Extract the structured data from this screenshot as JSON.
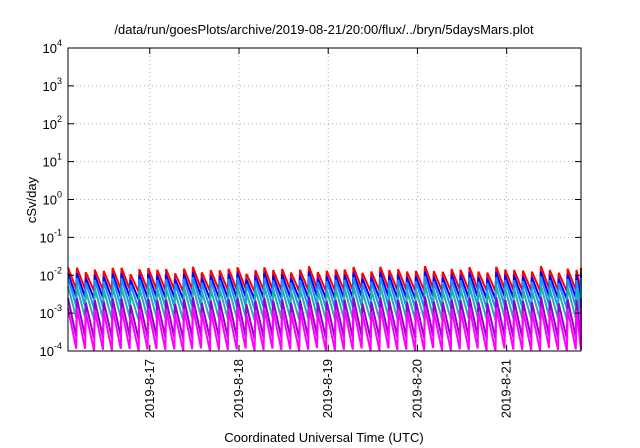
{
  "chart_data": {
    "type": "line",
    "title": "/data/run/goesPlots/archive/2019-08-21/20:00/flux/../bryn/5daysMars.plot",
    "xlabel": "Coordinated Universal Time (UTC)",
    "ylabel": "cSv/day",
    "yscale": "log",
    "ylim": [
      0.0001,
      10000
    ],
    "yticks": [
      {
        "value": 0.0001,
        "base": "10",
        "exp": "-4"
      },
      {
        "value": 0.001,
        "base": "10",
        "exp": "-3"
      },
      {
        "value": 0.01,
        "base": "10",
        "exp": "-2"
      },
      {
        "value": 0.1,
        "base": "10",
        "exp": "-1"
      },
      {
        "value": 1,
        "base": "10",
        "exp": "0"
      },
      {
        "value": 10,
        "base": "10",
        "exp": "1"
      },
      {
        "value": 100,
        "base": "10",
        "exp": "2"
      },
      {
        "value": 1000,
        "base": "10",
        "exp": "3"
      },
      {
        "value": 10000,
        "base": "10",
        "exp": "4"
      }
    ],
    "xlim": [
      "2019-08-16T02:00",
      "2019-08-21T20:00"
    ],
    "xticks": [
      "2019-8-17",
      "2019-8-18",
      "2019-8-19",
      "2019-8-20",
      "2019-8-21"
    ],
    "grid": true,
    "series": [
      {
        "color": "#ff0000",
        "peak": 0.014,
        "trough": 0.0045
      },
      {
        "color": "#0000ff",
        "peak": 0.01,
        "trough": 0.0028
      },
      {
        "color": "#1e90ff",
        "peak": 0.0075,
        "trough": 0.0016
      },
      {
        "color": "#20b2aa",
        "peak": 0.0045,
        "trough": 0.0008
      },
      {
        "color": "#9400d3",
        "peak": 0.0022,
        "trough": 0.00025
      },
      {
        "color": "#ff00ff",
        "peak": 0.0012,
        "trough": 0.00012
      }
    ],
    "period_hours": 2.4
  }
}
